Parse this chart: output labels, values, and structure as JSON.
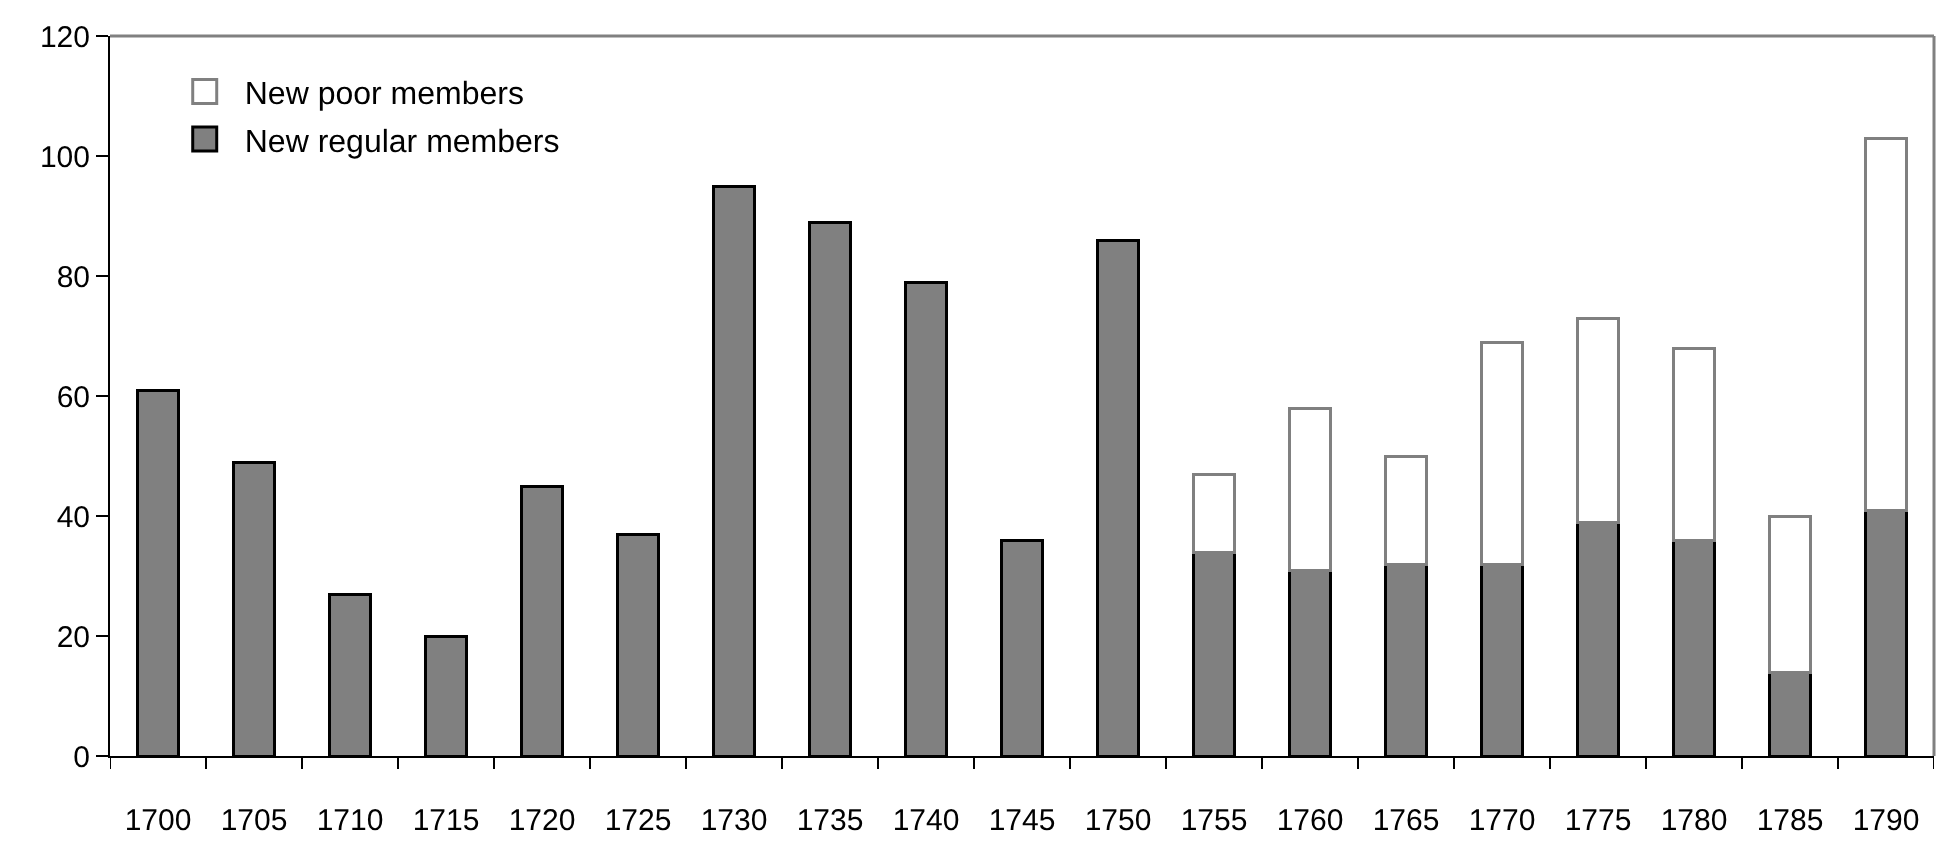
{
  "chart_data": {
    "type": "bar",
    "stacked": true,
    "categories": [
      "1700",
      "1705",
      "1710",
      "1715",
      "1720",
      "1725",
      "1730",
      "1735",
      "1740",
      "1745",
      "1750",
      "1755",
      "1760",
      "1765",
      "1770",
      "1775",
      "1780",
      "1785",
      "1790"
    ],
    "series": [
      {
        "name": "New regular members",
        "color": "#808080",
        "values": [
          61,
          49,
          27,
          20,
          45,
          37,
          95,
          89,
          79,
          36,
          86,
          34,
          31,
          32,
          32,
          39,
          36,
          14,
          41
        ]
      },
      {
        "name": "New poor members",
        "color": "#ffffff",
        "values": [
          null,
          null,
          null,
          null,
          null,
          null,
          null,
          null,
          null,
          null,
          null,
          13,
          27,
          18,
          37,
          34,
          32,
          26,
          62
        ]
      }
    ],
    "ylim": [
      0,
      120
    ],
    "yticks": [
      0,
      20,
      40,
      60,
      80,
      100,
      120
    ],
    "grid": false,
    "legend": "top left"
  }
}
